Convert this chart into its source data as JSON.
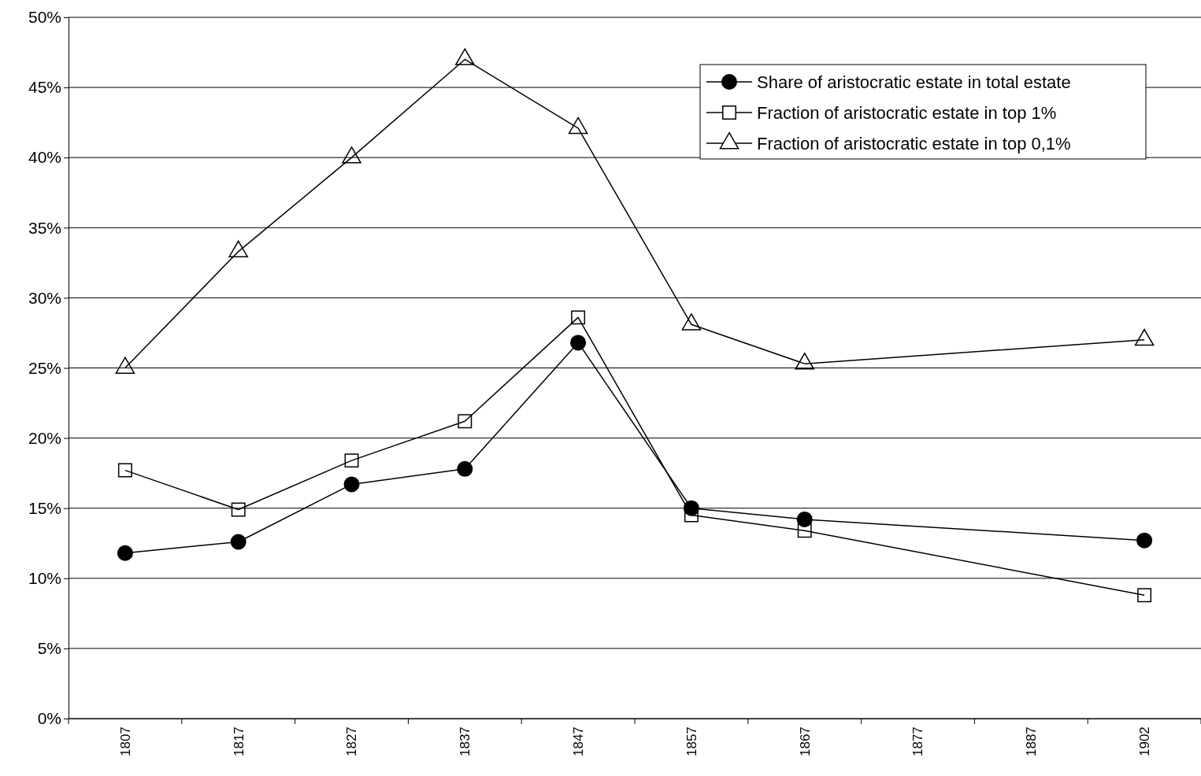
{
  "chart_data": {
    "type": "line",
    "categories": [
      "1807",
      "1817",
      "1827",
      "1837",
      "1847",
      "1857",
      "1867",
      "1877",
      "1887",
      "1902"
    ],
    "series": [
      {
        "name": "Share of aristocratic estate in total estate",
        "color": "#000000",
        "marker": "circle",
        "values": [
          11.8,
          12.6,
          16.7,
          17.8,
          26.8,
          15.0,
          14.2,
          null,
          null,
          12.7
        ]
      },
      {
        "name": "Fraction of aristocratic estate in top 1%",
        "color": "#000000",
        "marker": "square",
        "values": [
          17.7,
          14.9,
          18.4,
          21.2,
          28.6,
          14.5,
          13.4,
          null,
          null,
          8.8
        ]
      },
      {
        "name": "Fraction of aristocratic estate in top 0,1%",
        "color": "#000000",
        "marker": "triangle",
        "values": [
          25.0,
          33.3,
          40.0,
          47.0,
          42.1,
          28.1,
          25.3,
          null,
          null,
          27.0
        ]
      }
    ],
    "ylim": [
      0,
      50
    ],
    "yticks": [
      {
        "value": 0,
        "label": "0%"
      },
      {
        "value": 5,
        "label": "5%"
      },
      {
        "value": 10,
        "label": "10%"
      },
      {
        "value": 15,
        "label": "15%"
      },
      {
        "value": 20,
        "label": "20%"
      },
      {
        "value": 25,
        "label": "25%"
      },
      {
        "value": 30,
        "label": "30%"
      },
      {
        "value": 35,
        "label": "35%"
      },
      {
        "value": 40,
        "label": "40%"
      },
      {
        "value": 45,
        "label": "45%"
      },
      {
        "value": 50,
        "label": "50%"
      }
    ],
    "grid": "y",
    "legend": "top right",
    "line_style": "solid"
  }
}
